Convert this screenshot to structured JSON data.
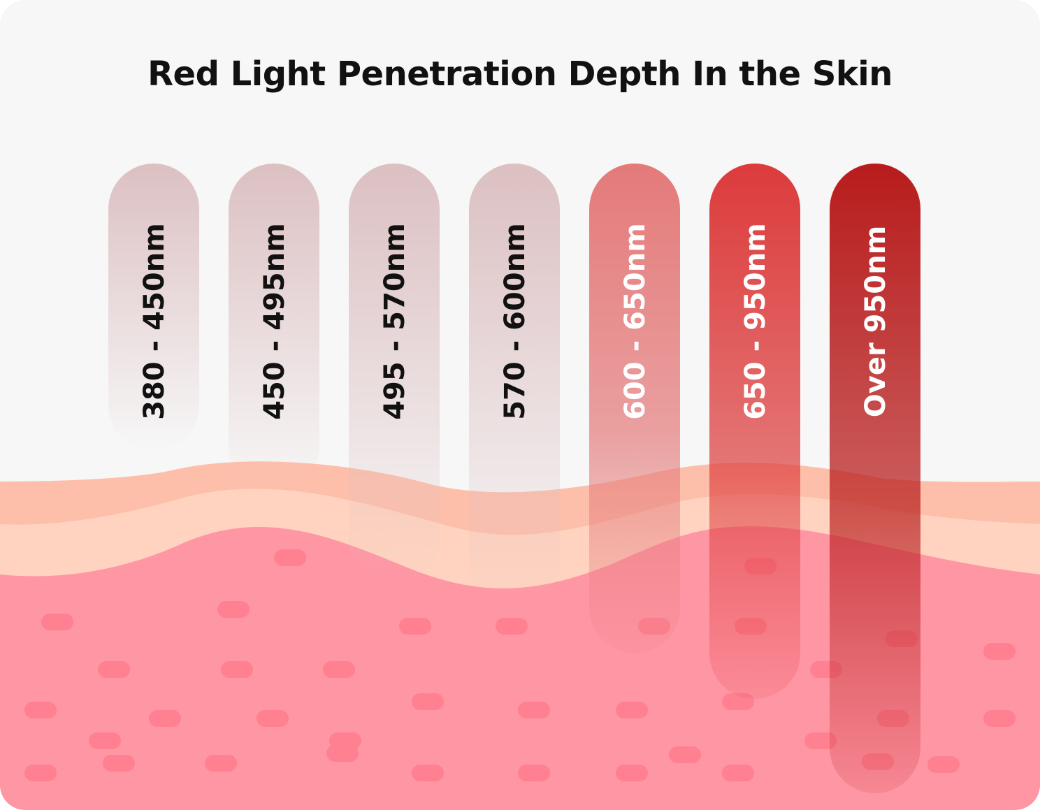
{
  "title": "Red Light Penetration Depth In the Skin",
  "bands": [
    {
      "label": "380 - 450nm",
      "color_top": "#dcc0c2",
      "text_color": "#111111"
    },
    {
      "label": "450 - 495nm",
      "color_top": "#dcc0c2",
      "text_color": "#111111"
    },
    {
      "label": "495 - 570nm",
      "color_top": "#dcc0c2",
      "text_color": "#111111"
    },
    {
      "label": "570 - 600nm",
      "color_top": "#dcc0c2",
      "text_color": "#111111"
    },
    {
      "label": "600 - 650nm",
      "color_top": "#e47a7a",
      "text_color": "#ffffff"
    },
    {
      "label": "650 - 950nm",
      "color_top": "#dc3b3b",
      "text_color": "#ffffff"
    },
    {
      "label": "Over 950nm",
      "color_top": "#b81c1c",
      "text_color": "#ffffff"
    }
  ],
  "skin_colors": {
    "epidermis": "#febfaa",
    "dermis": "#ffd3c0",
    "subcutis": "#ff96a4",
    "cells": "#ff8090"
  }
}
